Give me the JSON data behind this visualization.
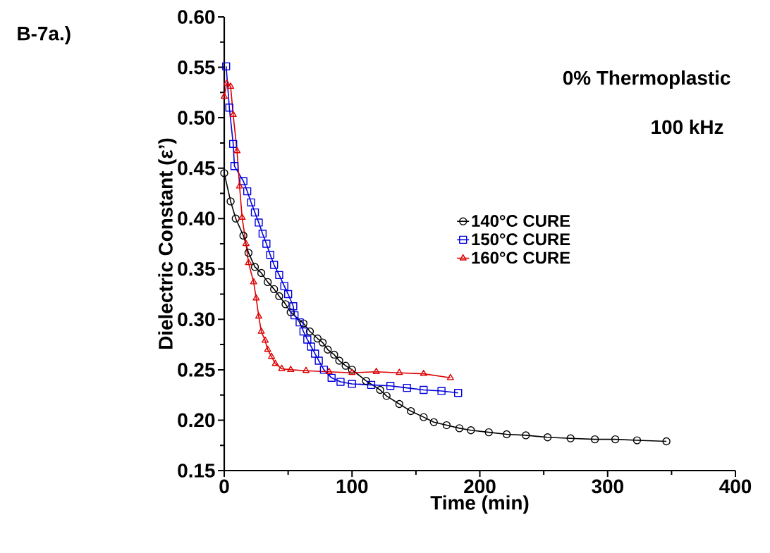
{
  "chart_data": {
    "type": "line",
    "xlabel": "Time (min)",
    "ylabel": "Dielectric Constant  (ε’)",
    "annotations": [
      "B-7a.)",
      "0% Thermoplastic",
      "100 kHz"
    ],
    "xlim": [
      0,
      400
    ],
    "xticks": [
      0,
      100,
      200,
      300,
      400
    ],
    "ylim": [
      0.15,
      0.6
    ],
    "yticks": [
      {
        "value": 0.15,
        "label": "0.15"
      },
      {
        "value": 0.2,
        "label": "0.20"
      },
      {
        "value": 0.25,
        "label": "0.25"
      },
      {
        "value": 0.3,
        "label": "0.30"
      },
      {
        "value": 0.35,
        "label": "0.35"
      },
      {
        "value": 0.4,
        "label": "0.40"
      },
      {
        "value": 0.45,
        "label": "0.45"
      },
      {
        "value": 0.5,
        "label": "0.50"
      },
      {
        "value": 0.55,
        "label": "0.55"
      },
      {
        "value": 0.6,
        "label": "0.60"
      }
    ],
    "grid": false,
    "legend": "right",
    "line_style": "solid",
    "series": [
      {
        "name": "140°C CURE",
        "color": "#000000",
        "marker": "circle",
        "x": [
          0,
          5,
          9,
          15,
          19,
          24,
          29,
          34,
          39,
          43,
          48,
          52,
          62,
          67,
          73,
          77,
          81,
          86,
          90,
          95,
          100,
          111,
          122,
          127,
          137,
          146,
          156,
          164,
          174,
          184,
          193,
          207,
          221,
          236,
          253,
          271,
          290,
          306,
          323,
          346
        ],
        "values": [
          0.445,
          0.417,
          0.4,
          0.383,
          0.366,
          0.352,
          0.346,
          0.337,
          0.33,
          0.323,
          0.315,
          0.307,
          0.296,
          0.288,
          0.281,
          0.277,
          0.27,
          0.265,
          0.259,
          0.254,
          0.25,
          0.239,
          0.23,
          0.224,
          0.216,
          0.209,
          0.203,
          0.198,
          0.195,
          0.192,
          0.19,
          0.188,
          0.186,
          0.185,
          0.183,
          0.182,
          0.181,
          0.181,
          0.18,
          0.179
        ]
      },
      {
        "name": "150°C CURE",
        "color": "#0000dd",
        "marker": "square",
        "x": [
          1.5,
          4,
          7,
          8,
          15,
          18,
          21,
          24,
          27,
          30,
          33,
          36,
          39,
          43,
          47,
          50,
          54,
          55,
          59,
          62,
          65,
          68,
          71,
          74,
          78,
          84,
          91,
          100,
          115,
          130,
          143,
          156,
          170,
          183
        ],
        "values": [
          0.551,
          0.51,
          0.474,
          0.452,
          0.437,
          0.427,
          0.416,
          0.406,
          0.396,
          0.385,
          0.375,
          0.364,
          0.354,
          0.344,
          0.333,
          0.325,
          0.313,
          0.304,
          0.297,
          0.288,
          0.28,
          0.273,
          0.266,
          0.259,
          0.25,
          0.242,
          0.238,
          0.236,
          0.235,
          0.234,
          0.232,
          0.23,
          0.229,
          0.227
        ]
      },
      {
        "name": "160°C CURE",
        "color": "#dd0000",
        "marker": "triangle",
        "x": [
          0,
          2,
          5,
          7,
          10,
          12,
          14,
          17,
          19,
          23,
          25,
          27,
          29,
          32,
          34,
          37,
          40,
          45,
          52,
          64,
          82,
          100,
          119,
          137,
          156,
          177
        ],
        "values": [
          0.521,
          0.534,
          0.531,
          0.503,
          0.467,
          0.432,
          0.401,
          0.375,
          0.356,
          0.337,
          0.321,
          0.303,
          0.288,
          0.279,
          0.27,
          0.263,
          0.256,
          0.251,
          0.25,
          0.249,
          0.248,
          0.247,
          0.248,
          0.247,
          0.246,
          0.242
        ]
      }
    ]
  }
}
